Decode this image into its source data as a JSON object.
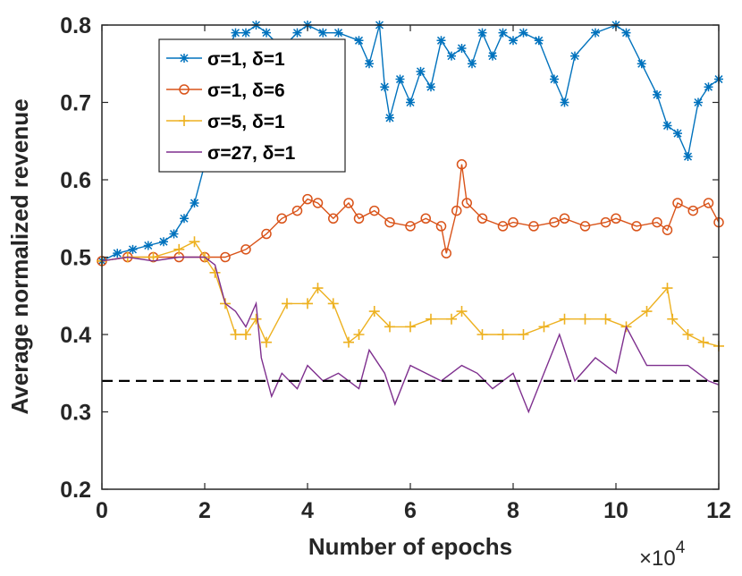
{
  "chart_data": {
    "type": "line",
    "xlabel": "Number of epochs",
    "ylabel": "Average normalized revenue",
    "x_multiplier": "×10",
    "x_exponent": "4",
    "xlim": [
      0,
      12
    ],
    "ylim": [
      0.2,
      0.8
    ],
    "x_ticks": [
      0,
      2,
      4,
      6,
      8,
      10,
      12
    ],
    "x_tick_labels": [
      "0",
      "2",
      "4",
      "6",
      "8",
      "10",
      "12"
    ],
    "y_ticks": [
      0.2,
      0.3,
      0.4,
      0.5,
      0.6,
      0.7,
      0.8
    ],
    "y_tick_labels": [
      "0.2",
      "0.3",
      "0.4",
      "0.5",
      "0.6",
      "0.7",
      "0.8"
    ],
    "grid": false,
    "legend_position": "top-left",
    "reference_line": {
      "y": 0.34,
      "style": "dashed",
      "color": "#000000"
    },
    "series": [
      {
        "name": "σ=1,   δ=1",
        "sigma": "1",
        "delta": "1",
        "color": "#0072BD",
        "marker": "asterisk",
        "x": [
          0,
          0.3,
          0.6,
          0.9,
          1.2,
          1.4,
          1.6,
          1.8,
          2,
          2.2,
          2.4,
          2.6,
          2.8,
          3,
          3.2,
          3.5,
          3.8,
          4,
          4.3,
          4.6,
          5,
          5.2,
          5.4,
          5.5,
          5.6,
          5.8,
          6,
          6.2,
          6.4,
          6.6,
          6.8,
          7,
          7.2,
          7.4,
          7.6,
          7.8,
          8,
          8.2,
          8.5,
          8.8,
          9,
          9.2,
          9.6,
          10,
          10.2,
          10.5,
          10.8,
          11,
          11.2,
          11.4,
          11.6,
          11.8,
          12
        ],
        "y": [
          0.495,
          0.505,
          0.51,
          0.515,
          0.52,
          0.53,
          0.55,
          0.57,
          0.62,
          0.7,
          0.76,
          0.79,
          0.79,
          0.8,
          0.79,
          0.77,
          0.79,
          0.8,
          0.79,
          0.79,
          0.78,
          0.75,
          0.8,
          0.72,
          0.68,
          0.73,
          0.7,
          0.74,
          0.72,
          0.78,
          0.76,
          0.77,
          0.75,
          0.79,
          0.76,
          0.79,
          0.78,
          0.79,
          0.78,
          0.73,
          0.7,
          0.76,
          0.79,
          0.8,
          0.79,
          0.75,
          0.71,
          0.67,
          0.66,
          0.63,
          0.7,
          0.72,
          0.73
        ]
      },
      {
        "name": "σ=1,   δ=6",
        "sigma": "1",
        "delta": "6",
        "color": "#D95319",
        "marker": "circle",
        "x": [
          0,
          0.5,
          1,
          1.5,
          2,
          2.4,
          2.8,
          3.2,
          3.5,
          3.8,
          4,
          4.2,
          4.5,
          4.8,
          5,
          5.3,
          5.6,
          6,
          6.3,
          6.6,
          6.7,
          6.9,
          7,
          7.1,
          7.4,
          7.8,
          8,
          8.4,
          8.8,
          9,
          9.4,
          9.8,
          10,
          10.4,
          10.8,
          11,
          11.2,
          11.5,
          11.8,
          12
        ],
        "y": [
          0.495,
          0.5,
          0.5,
          0.5,
          0.5,
          0.5,
          0.51,
          0.53,
          0.55,
          0.56,
          0.575,
          0.57,
          0.55,
          0.57,
          0.55,
          0.56,
          0.545,
          0.54,
          0.55,
          0.54,
          0.505,
          0.56,
          0.62,
          0.57,
          0.55,
          0.54,
          0.545,
          0.54,
          0.545,
          0.55,
          0.54,
          0.545,
          0.55,
          0.54,
          0.545,
          0.535,
          0.57,
          0.56,
          0.57,
          0.545
        ]
      },
      {
        "name": "σ=5,   δ=1",
        "sigma": "5",
        "delta": "1",
        "color": "#EDB120",
        "marker": "plus",
        "x": [
          0,
          0.5,
          1,
          1.5,
          1.8,
          2,
          2.2,
          2.4,
          2.6,
          2.8,
          3,
          3.2,
          3.6,
          4,
          4.2,
          4.5,
          4.8,
          5,
          5.3,
          5.6,
          6,
          6.4,
          6.8,
          7,
          7.4,
          7.8,
          8.2,
          8.6,
          9,
          9.4,
          9.8,
          10.2,
          10.6,
          11,
          11.1,
          11.4,
          11.7,
          12
        ],
        "y": [
          0.495,
          0.5,
          0.5,
          0.51,
          0.52,
          0.5,
          0.48,
          0.44,
          0.4,
          0.4,
          0.42,
          0.39,
          0.44,
          0.44,
          0.46,
          0.44,
          0.39,
          0.4,
          0.43,
          0.41,
          0.41,
          0.42,
          0.42,
          0.43,
          0.4,
          0.4,
          0.4,
          0.41,
          0.42,
          0.42,
          0.42,
          0.41,
          0.43,
          0.46,
          0.42,
          0.4,
          0.39,
          0.385
        ]
      },
      {
        "name": "σ=27,   δ=1",
        "sigma": "27",
        "delta": "1",
        "color": "#7E2F8E",
        "marker": "none",
        "x": [
          0,
          0.5,
          1,
          1.5,
          2,
          2.2,
          2.4,
          2.6,
          2.8,
          3,
          3.1,
          3.3,
          3.5,
          3.8,
          4,
          4.3,
          4.6,
          5,
          5.2,
          5.5,
          5.7,
          6,
          6.3,
          6.6,
          7,
          7.3,
          7.6,
          8,
          8.3,
          8.6,
          8.9,
          9.2,
          9.6,
          10,
          10.2,
          10.6,
          11,
          11.4,
          11.8,
          12
        ],
        "y": [
          0.495,
          0.5,
          0.495,
          0.5,
          0.5,
          0.49,
          0.44,
          0.43,
          0.41,
          0.44,
          0.37,
          0.32,
          0.35,
          0.33,
          0.36,
          0.34,
          0.35,
          0.33,
          0.38,
          0.35,
          0.31,
          0.36,
          0.35,
          0.34,
          0.36,
          0.35,
          0.33,
          0.35,
          0.3,
          0.35,
          0.4,
          0.34,
          0.37,
          0.35,
          0.41,
          0.36,
          0.36,
          0.36,
          0.34,
          0.335
        ]
      }
    ]
  }
}
